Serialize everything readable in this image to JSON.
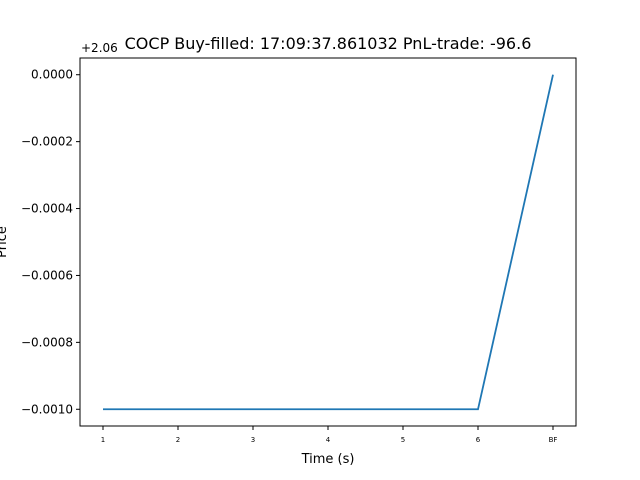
{
  "chart_data": {
    "type": "line",
    "title": "COCP  Buy-filled:  17:09:37.861032  PnL-trade:  -96.6",
    "xlabel": "Time (s)",
    "ylabel": "Price",
    "y_offset_label": "+2.06",
    "categories": [
      "1",
      "2",
      "3",
      "4",
      "5",
      "6",
      "BF"
    ],
    "series": [
      {
        "values": [
          -0.001,
          -0.001,
          -0.001,
          -0.001,
          -0.001,
          -0.001,
          0.0
        ]
      }
    ],
    "y_ticks": [
      {
        "value": 0.0,
        "label": "0.0000"
      },
      {
        "value": -0.0002,
        "label": "−0.0002"
      },
      {
        "value": -0.0004,
        "label": "−0.0004"
      },
      {
        "value": -0.0006,
        "label": "−0.0006"
      },
      {
        "value": -0.0008,
        "label": "−0.0008"
      },
      {
        "value": -0.001,
        "label": "−0.0010"
      }
    ],
    "ylim": [
      -0.00105,
      5e-05
    ],
    "grid": false,
    "line_color": "#1f77b4"
  }
}
